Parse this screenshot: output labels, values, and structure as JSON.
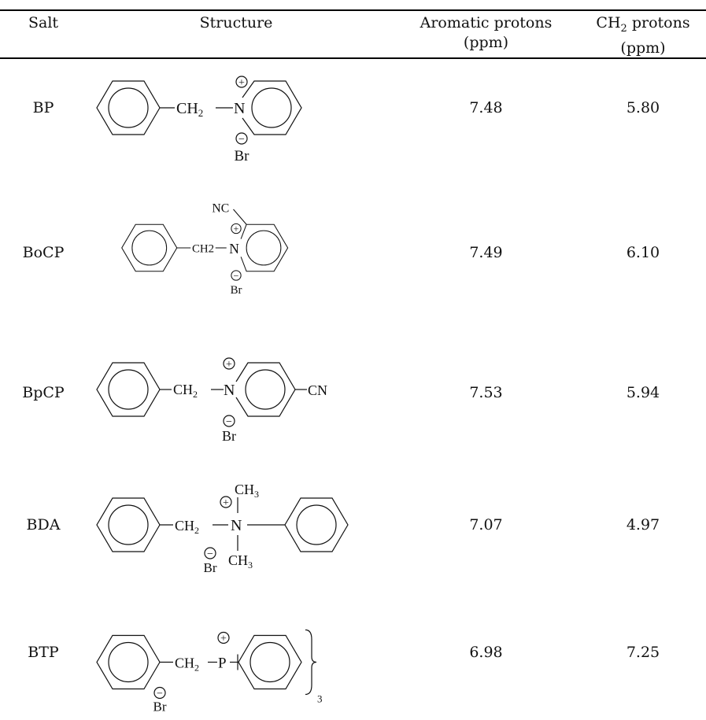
{
  "headers": {
    "salt": "Salt",
    "structure": "Structure",
    "aromatic_line1": "Aromatic protons",
    "aromatic_line2": "(ppm)",
    "ch2_line1_main": "CH",
    "ch2_line1_sub": "2",
    "ch2_line1_rest": " protons",
    "ch2_line2": "(ppm)"
  },
  "rows": [
    {
      "salt": "BP",
      "aromatic": "7.48",
      "ch2": "5.80",
      "labels": {
        "ch2": "CH",
        "ch2_sub": "2",
        "plus": "+",
        "minus": "−",
        "n": "N",
        "br": "Br"
      }
    },
    {
      "salt": "BoCP",
      "aromatic": "7.49",
      "ch2": "6.10",
      "labels": {
        "nc": "NC",
        "ch2": "CH2",
        "plus": "+",
        "minus": "−",
        "n": "N",
        "br": "Br"
      }
    },
    {
      "salt": "BpCP",
      "aromatic": "7.53",
      "ch2": "5.94",
      "labels": {
        "ch2": "CH",
        "ch2_sub": "2",
        "plus": "+",
        "minus": "−",
        "n": "N",
        "br": "Br",
        "cn": "CN"
      }
    },
    {
      "salt": "BDA",
      "aromatic": "7.07",
      "ch2": "4.97",
      "labels": {
        "ch2": "CH",
        "ch2_sub": "2",
        "plus": "+",
        "minus": "−",
        "n": "N",
        "br": "Br",
        "ch3_top": "CH",
        "ch3_top_sub": "3",
        "ch3_bot": "CH",
        "ch3_bot_sub": "3"
      }
    },
    {
      "salt": "BTP",
      "aromatic": "6.98",
      "ch2": "7.25",
      "labels": {
        "ch2": "CH",
        "ch2_sub": "2",
        "plus": "+",
        "minus": "−",
        "p": "P",
        "br": "Br",
        "n3": "3"
      }
    }
  ]
}
